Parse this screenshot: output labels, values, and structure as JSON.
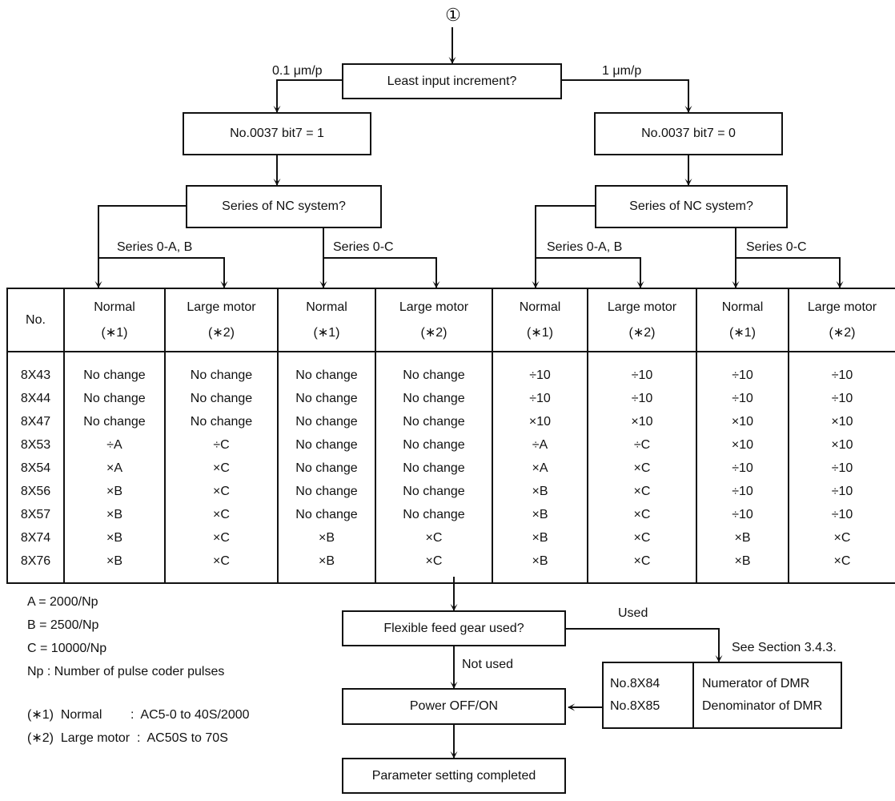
{
  "start_marker": "①",
  "top_decision": "Least input increment?",
  "branch_left_label": "0.1 μm/p",
  "branch_right_label": "1 μm/p",
  "left_param_box": "No.0037  bit7 = 1",
  "right_param_box": "No.0037  bit7 = 0",
  "left_series_decision": "Series of NC system?",
  "right_series_decision": "Series of NC system?",
  "series_ab_label": "Series 0-A, B",
  "series_c_label": "Series 0-C",
  "table": {
    "headers": [
      {
        "main": "No.",
        "sub": ""
      },
      {
        "main": "Normal",
        "sub": "(∗1)"
      },
      {
        "main": "Large motor",
        "sub": "(∗2)"
      },
      {
        "main": "Normal",
        "sub": "(∗1)"
      },
      {
        "main": "Large motor",
        "sub": "(∗2)"
      },
      {
        "main": "Normal",
        "sub": "(∗1)"
      },
      {
        "main": "Large motor",
        "sub": "(∗2)"
      },
      {
        "main": "Normal",
        "sub": "(∗1)"
      },
      {
        "main": "Large motor",
        "sub": "(∗2)"
      }
    ],
    "rows": [
      [
        "8X43",
        "No change",
        "No change",
        "No change",
        "No change",
        "÷10",
        "÷10",
        "÷10",
        "÷10"
      ],
      [
        "8X44",
        "No change",
        "No change",
        "No change",
        "No change",
        "÷10",
        "÷10",
        "÷10",
        "÷10"
      ],
      [
        "8X47",
        "No change",
        "No change",
        "No change",
        "No change",
        "×10",
        "×10",
        "×10",
        "×10"
      ],
      [
        "8X53",
        "÷A",
        "÷C",
        "No change",
        "No change",
        "÷A",
        "÷C",
        "×10",
        "×10"
      ],
      [
        "8X54",
        "×A",
        "×C",
        "No change",
        "No change",
        "×A",
        "×C",
        "÷10",
        "÷10"
      ],
      [
        "8X56",
        "×B",
        "×C",
        "No change",
        "No change",
        "×B",
        "×C",
        "÷10",
        "÷10"
      ],
      [
        "8X57",
        "×B",
        "×C",
        "No change",
        "No change",
        "×B",
        "×C",
        "÷10",
        "÷10"
      ],
      [
        "8X74",
        "×B",
        "×C",
        "×B",
        "×C",
        "×B",
        "×C",
        "×B",
        "×C"
      ],
      [
        "8X76",
        "×B",
        "×C",
        "×B",
        "×C",
        "×B",
        "×C",
        "×B",
        "×C"
      ]
    ]
  },
  "notes": {
    "a": "A = 2000/Np",
    "b": "B = 2500/Np",
    "c": "C = 10000/Np",
    "np": "Np :  Number of pulse coder pulses",
    "n1": "(∗1)  Normal        :  AC5-0 to 40S/2000",
    "n2": "(∗2)  Large motor  :  AC50S to 70S"
  },
  "flex_decision": "Flexible feed gear used?",
  "used_label": "Used",
  "not_used_label": "Not used",
  "see_section": "See Section 3.4.3.",
  "dmr": {
    "p1": "No.8X84",
    "d1": "Numerator of DMR",
    "p2": "No.8X85",
    "d2": "Denominator of DMR"
  },
  "power_box": "Power OFF/ON",
  "final_box": "Parameter setting completed"
}
